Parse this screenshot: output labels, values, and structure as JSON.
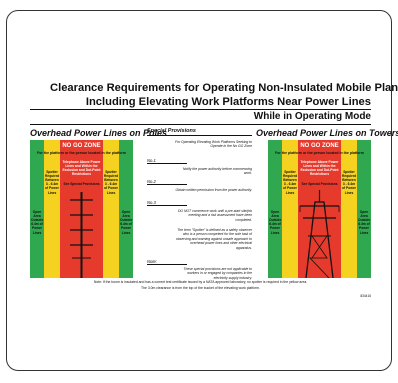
{
  "title_line1": "Clearance Requirements for Operating Non-Insulated Mobile Plant",
  "title_line2": "Including Elevating Work Platforms Near Power Lines",
  "mode": "While in Operating Mode",
  "left_title": "Overhead Power Lines on Poles",
  "right_title": "Overhead Power Lines on Towers",
  "no_go": "NO GO ZONE",
  "banner": "For the platform or the person located in the platform",
  "red_text": "Telephone Above Power Lines and Within the Exclusion and Dot-Point Restrictions",
  "spotter_text": "Spotter Required Between 3 - 6.4m of Power Lines",
  "see_special": "See Special Provisions",
  "open_area": "Open Area Outside 6.4m of Power Lines",
  "special_heading": "Special Provisions",
  "intro": "For Operating Elevating Work Platforms Seeking to Operate in the No GO Zone",
  "no1": "No.1",
  "no1_text": "Notify the power authority before commencing work.",
  "no2": "No.2",
  "no2_text": "Obtain written permission from the power authority.",
  "no3": "No.3",
  "no3_text": "DO NOT commence work until a pre-start site/job meeting and a risk assessment have been completed.",
  "spotter_def": "The term \"Spotter\" is defined as a safety observer who is a person competent for the sole task of observing and warning against unsafe approach to overhead power lines and other electrical apparatus.",
  "note_label": "Note:",
  "note_text": "These special provisions are not applicable to workers in or engaged by companies in the electricity supply industry.",
  "footnote1": "Note: If the boom is insulated and has a current test certificate issued by a NATA approved laboratory, no spotter is required in the yellow area.",
  "footnote2": "The 3.0m clearance is from the top of the bucket of the elevating work platform.",
  "code": "834416",
  "colors": {
    "green": "#2fa84f",
    "yellow": "#f4d21f",
    "red": "#e53a2c"
  }
}
